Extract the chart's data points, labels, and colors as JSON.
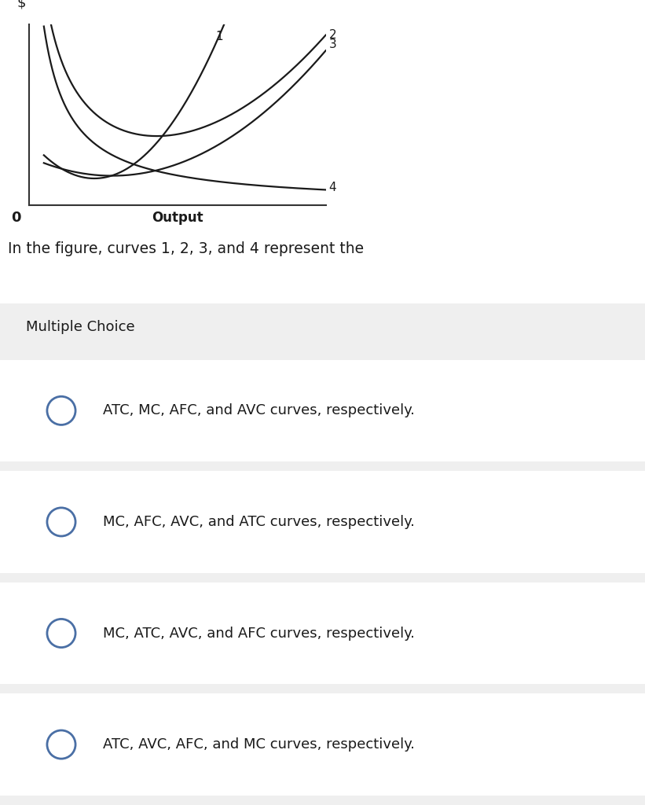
{
  "xlabel": "Output",
  "ylabel": "$",
  "background_color": "#ffffff",
  "curve_color": "#1a1a1a",
  "axis_color": "#333333",
  "question_text": "In the figure, curves 1, 2, 3, and 4 represent the",
  "mc_label": "Multiple Choice",
  "choices": [
    "ATC, MC, AFC, and AVC curves, respectively.",
    "MC, AFC, AVC, and ATC curves, respectively.",
    "MC, ATC, AVC, and AFC curves, respectively.",
    "ATC, AVC, AFC, and MC curves, respectively."
  ],
  "mc_bg": "#efefef",
  "choice_bg_odd": "#ffffff",
  "choice_bg_even": "#f5f5f5",
  "choice_border": "#dddddd",
  "circle_color": "#4a6fa5",
  "text_color": "#1a1a1a",
  "curve1_label": "1",
  "curve2_label": "2",
  "curve3_label": "3",
  "curve4_label": "4"
}
